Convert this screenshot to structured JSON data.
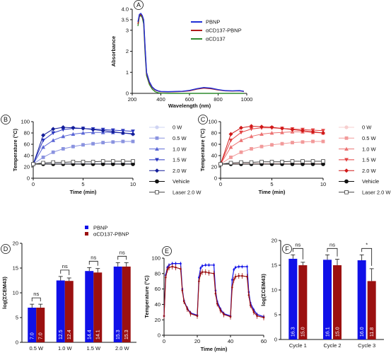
{
  "panels": [
    {
      "id": "A",
      "label": "A"
    },
    {
      "id": "B",
      "label": "B"
    },
    {
      "id": "C",
      "label": "C"
    },
    {
      "id": "D",
      "label": "D"
    },
    {
      "id": "E",
      "label": "E"
    },
    {
      "id": "F",
      "label": "F"
    }
  ],
  "chart_data": [
    {
      "panel": "A",
      "type": "line",
      "xlabel": "Wavelength (nm)",
      "ylabel": "Absorbance",
      "xlim": [
        200,
        1000
      ],
      "ylim": [
        0,
        4.0
      ],
      "xticks": [
        200,
        400,
        600,
        800,
        1000
      ],
      "yticks": [
        0,
        1,
        2,
        3,
        3.5,
        4.0
      ],
      "ytick_labels": [
        "0",
        "1",
        "2",
        "3",
        "3.5",
        "4.0"
      ],
      "legend_position": "top-right",
      "series": [
        {
          "name": "PBNP",
          "color": "#1f2fd6",
          "x": [
            240,
            250,
            260,
            270,
            280,
            290,
            300,
            320,
            340,
            360,
            380,
            400,
            450,
            500,
            550,
            600,
            650,
            700,
            750,
            800,
            850,
            900,
            950,
            980
          ],
          "y": [
            3.4,
            3.75,
            3.8,
            3.7,
            3.5,
            2.2,
            1.0,
            0.55,
            0.3,
            0.18,
            0.12,
            0.09,
            0.08,
            0.09,
            0.1,
            0.14,
            0.22,
            0.28,
            0.25,
            0.18,
            0.13,
            0.12,
            0.13,
            0.1
          ]
        },
        {
          "name": "αCD137-PBNP",
          "color": "#b01a1a",
          "x": [
            240,
            250,
            260,
            270,
            280,
            290,
            300,
            320,
            340,
            360,
            380,
            400,
            450,
            500,
            550,
            600,
            650,
            700,
            750,
            800,
            850,
            900,
            950,
            980
          ],
          "y": [
            3.3,
            3.7,
            3.75,
            3.65,
            3.45,
            2.1,
            0.95,
            0.5,
            0.28,
            0.16,
            0.11,
            0.08,
            0.07,
            0.08,
            0.09,
            0.12,
            0.2,
            0.25,
            0.22,
            0.16,
            0.12,
            0.11,
            0.12,
            0.09
          ]
        },
        {
          "name": "αCD137",
          "color": "#2e8b2e",
          "x": [
            240,
            250,
            260,
            270,
            280,
            290,
            300,
            320,
            340,
            360,
            380,
            400,
            450,
            500,
            550,
            600,
            650,
            700,
            750,
            800,
            850,
            900,
            950,
            980
          ],
          "y": [
            3.2,
            3.65,
            3.7,
            3.6,
            3.3,
            1.9,
            0.85,
            0.42,
            0.2,
            0.08,
            0.03,
            0.01,
            0.0,
            0.0,
            0.0,
            0.0,
            0.0,
            0.0,
            0.0,
            0.0,
            0.0,
            0.0,
            0.0,
            0.0
          ]
        }
      ]
    },
    {
      "panel": "B",
      "type": "line",
      "xlabel": "Time (min)",
      "ylabel": "Temperature (°C)",
      "xlim": [
        0,
        10
      ],
      "ylim": [
        0,
        100
      ],
      "xticks": [
        0,
        5,
        10
      ],
      "yticks": [
        0,
        20,
        40,
        60,
        80,
        100
      ],
      "legend_position": "right",
      "series": [
        {
          "name": "0 W",
          "color": "#cfd4f3",
          "marker": "circle",
          "x": [
            0,
            1,
            2,
            3,
            4,
            5,
            6,
            7,
            8,
            9,
            10
          ],
          "y": [
            25,
            26,
            26,
            26,
            26,
            26,
            26,
            26,
            26,
            26,
            26
          ]
        },
        {
          "name": "0.5 W",
          "color": "#8a93e0",
          "marker": "square",
          "x": [
            0,
            1,
            2,
            3,
            4,
            5,
            6,
            7,
            8,
            9,
            10
          ],
          "y": [
            25,
            37,
            46,
            52,
            56,
            59,
            61,
            63,
            64,
            65,
            65
          ]
        },
        {
          "name": "1.0 W",
          "color": "#5b67d6",
          "marker": "triangle-up",
          "x": [
            0,
            1,
            2,
            3,
            4,
            5,
            6,
            7,
            8,
            9,
            10
          ],
          "y": [
            25,
            55,
            67,
            74,
            78,
            80,
            81,
            81,
            81,
            80,
            79
          ]
        },
        {
          "name": "1.5 W",
          "color": "#2a36c0",
          "marker": "triangle-down",
          "x": [
            0,
            1,
            2,
            3,
            4,
            5,
            6,
            7,
            8,
            9,
            10
          ],
          "y": [
            25,
            67,
            80,
            86,
            88,
            88,
            87,
            86,
            85,
            84,
            83
          ]
        },
        {
          "name": "2.0 W",
          "color": "#121c99",
          "marker": "diamond",
          "x": [
            0,
            1,
            2,
            3,
            4,
            5,
            6,
            7,
            8,
            9,
            10
          ],
          "y": [
            25,
            76,
            87,
            90,
            89,
            88,
            86,
            84,
            82,
            80,
            78
          ]
        },
        {
          "name": "Vehicle",
          "color": "#111111",
          "marker": "circle-filled",
          "x": [
            0,
            1,
            2,
            3,
            4,
            5,
            6,
            7,
            8,
            9,
            10
          ],
          "y": [
            25,
            25,
            25,
            25,
            25,
            25,
            25,
            25,
            25,
            25,
            25
          ]
        },
        {
          "name": "Laser 2.0 W",
          "color": "#444444",
          "marker": "square-open",
          "x": [
            0,
            1,
            2,
            3,
            4,
            5,
            6,
            7,
            8,
            9,
            10
          ],
          "y": [
            25,
            27,
            28,
            28,
            29,
            29,
            29,
            30,
            30,
            30,
            30
          ]
        }
      ]
    },
    {
      "panel": "C",
      "type": "line",
      "xlabel": "Time (min)",
      "ylabel": "Temperature (°C)",
      "xlim": [
        0,
        10
      ],
      "ylim": [
        0,
        100
      ],
      "xticks": [
        0,
        5,
        10
      ],
      "yticks": [
        0,
        20,
        40,
        60,
        80,
        100
      ],
      "legend_position": "right",
      "series": [
        {
          "name": "0 W",
          "color": "#f7cfcf",
          "marker": "circle",
          "x": [
            0,
            1,
            2,
            3,
            4,
            5,
            6,
            7,
            8,
            9,
            10
          ],
          "y": [
            25,
            26,
            26,
            26,
            26,
            26,
            26,
            26,
            26,
            26,
            26
          ]
        },
        {
          "name": "0.5 W",
          "color": "#f29a9a",
          "marker": "square",
          "x": [
            0,
            1,
            2,
            3,
            4,
            5,
            6,
            7,
            8,
            9,
            10
          ],
          "y": [
            25,
            37,
            46,
            52,
            56,
            59,
            61,
            63,
            64,
            65,
            65
          ]
        },
        {
          "name": "1.0 W",
          "color": "#ec7272",
          "marker": "triangle-up",
          "x": [
            0,
            1,
            2,
            3,
            4,
            5,
            6,
            7,
            8,
            9,
            10
          ],
          "y": [
            25,
            55,
            67,
            74,
            78,
            80,
            81,
            82,
            82,
            81,
            80
          ]
        },
        {
          "name": "1.5 W",
          "color": "#e34242",
          "marker": "triangle-down",
          "x": [
            0,
            1,
            2,
            3,
            4,
            5,
            6,
            7,
            8,
            9,
            10
          ],
          "y": [
            25,
            67,
            81,
            87,
            89,
            89,
            88,
            87,
            86,
            85,
            84
          ]
        },
        {
          "name": "2.0 W",
          "color": "#d01818",
          "marker": "diamond",
          "x": [
            0,
            1,
            2,
            3,
            4,
            5,
            6,
            7,
            8,
            9,
            10
          ],
          "y": [
            25,
            78,
            89,
            92,
            91,
            90,
            88,
            86,
            84,
            82,
            80
          ]
        },
        {
          "name": "Vehicle",
          "color": "#111111",
          "marker": "circle-filled",
          "x": [
            0,
            1,
            2,
            3,
            4,
            5,
            6,
            7,
            8,
            9,
            10
          ],
          "y": [
            25,
            25,
            25,
            25,
            25,
            25,
            25,
            25,
            25,
            25,
            25
          ]
        },
        {
          "name": "Laser 2.0 W",
          "color": "#444444",
          "marker": "square-open",
          "x": [
            0,
            1,
            2,
            3,
            4,
            5,
            6,
            7,
            8,
            9,
            10
          ],
          "y": [
            25,
            27,
            28,
            28,
            29,
            29,
            29,
            30,
            30,
            30,
            30
          ]
        }
      ]
    },
    {
      "panel": "D",
      "type": "bar",
      "ylabel": "log(ΣCEM43)",
      "ylim": [
        0,
        20
      ],
      "yticks": [
        0,
        5,
        10,
        15,
        20
      ],
      "categories": [
        "0.5 W",
        "1.0 W",
        "1.5 W",
        "2.0 W"
      ],
      "legend_position": "top",
      "series": [
        {
          "name": "PBNP",
          "color": "#1010e8",
          "values": [
            7.0,
            12.5,
            14.4,
            15.3
          ],
          "errors": [
            0.7,
            0.8,
            0.7,
            0.8
          ],
          "labels": [
            "7.0",
            "12.5",
            "14.4",
            "15.3"
          ]
        },
        {
          "name": "αCD137-PBNP",
          "color": "#9b1010",
          "values": [
            7.0,
            12.4,
            14.1,
            15.3
          ],
          "errors": [
            0.7,
            0.6,
            0.8,
            0.8
          ],
          "labels": [
            "7.0",
            "12.4",
            "14.1",
            "15.3"
          ]
        }
      ],
      "significance": [
        "ns",
        "ns",
        "ns",
        "ns"
      ]
    },
    {
      "panel": "E",
      "type": "line",
      "xlabel": "Time (min)",
      "ylabel": "Temperature (°C)",
      "xlim": [
        0,
        60
      ],
      "ylim": [
        0,
        100
      ],
      "xticks": [
        0,
        20,
        40,
        60
      ],
      "yticks": [
        0,
        20,
        40,
        60,
        80,
        100
      ],
      "series": [
        {
          "color": "#1010e8",
          "x": [
            0,
            1,
            2,
            3,
            5,
            7,
            10,
            11,
            12,
            14,
            16,
            20,
            21,
            22,
            23,
            25,
            27,
            30,
            31,
            32,
            34,
            36,
            40,
            41,
            42,
            43,
            45,
            47,
            50,
            51,
            52,
            54,
            56,
            60
          ],
          "y": [
            25,
            78,
            88,
            91,
            93,
            93,
            93,
            60,
            45,
            35,
            29,
            26,
            75,
            87,
            90,
            91,
            91,
            91,
            58,
            44,
            34,
            28,
            25,
            72,
            85,
            88,
            89,
            89,
            89,
            56,
            42,
            33,
            27,
            24
          ]
        },
        {
          "color": "#9b1010",
          "x": [
            0,
            1,
            2,
            3,
            5,
            7,
            10,
            11,
            12,
            14,
            16,
            20,
            21,
            22,
            23,
            25,
            27,
            30,
            31,
            32,
            34,
            36,
            40,
            41,
            42,
            43,
            45,
            47,
            50,
            51,
            52,
            54,
            56,
            60
          ],
          "y": [
            25,
            75,
            85,
            88,
            89,
            88,
            86,
            58,
            44,
            34,
            28,
            25,
            70,
            80,
            82,
            82,
            81,
            80,
            54,
            41,
            32,
            27,
            24,
            62,
            72,
            76,
            77,
            77,
            76,
            52,
            39,
            30,
            25,
            23
          ]
        }
      ]
    },
    {
      "panel": "F",
      "type": "bar",
      "ylabel": "log(ΣCEM43)",
      "ylim": [
        0,
        20
      ],
      "yticks": [
        0,
        5,
        10,
        15,
        20
      ],
      "categories": [
        "Cycle 1",
        "Cycle 2",
        "Cycle 3"
      ],
      "series": [
        {
          "name": "PBNP",
          "color": "#1010e8",
          "values": [
            16.3,
            16.1,
            16.0
          ],
          "errors": [
            0.8,
            1.0,
            1.1
          ],
          "labels": [
            "16.3",
            "16.1",
            "16.0"
          ]
        },
        {
          "name": "αCD137-PBNP",
          "color": "#9b1010",
          "values": [
            15.0,
            15.0,
            11.8
          ],
          "errors": [
            0.6,
            1.2,
            2.5
          ],
          "labels": [
            "15.0",
            "15.0",
            "11.8"
          ]
        }
      ],
      "significance": [
        "ns",
        "ns",
        "*"
      ]
    }
  ]
}
